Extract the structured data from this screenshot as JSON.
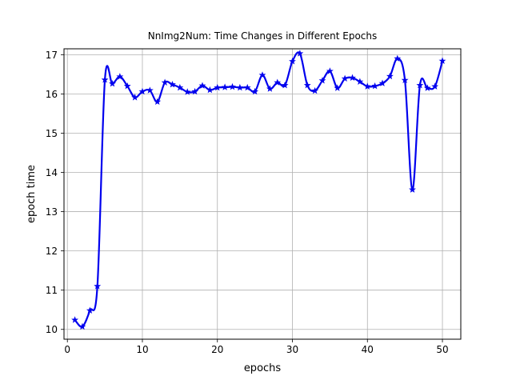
{
  "chart_data": {
    "type": "line",
    "title": "NnImg2Num: Time Changes in Different Epochs",
    "xlabel": "epochs",
    "ylabel": "epoch time",
    "xlim": [
      -0.45,
      52.45
    ],
    "ylim": [
      9.75,
      17.15
    ],
    "xticks": [
      0,
      10,
      20,
      30,
      40,
      50
    ],
    "yticks": [
      10,
      11,
      12,
      13,
      14,
      15,
      16,
      17
    ],
    "grid": true,
    "legend": "none",
    "series": [
      {
        "name": "",
        "color": "#0000ee",
        "marker": "star",
        "smooth": true,
        "x": [
          1,
          2,
          3,
          4,
          5,
          6,
          7,
          8,
          9,
          10,
          11,
          12,
          13,
          14,
          15,
          16,
          17,
          18,
          19,
          20,
          21,
          22,
          23,
          24,
          25,
          26,
          27,
          28,
          29,
          30,
          31,
          32,
          33,
          34,
          35,
          36,
          37,
          38,
          39,
          40,
          41,
          42,
          43,
          44,
          45,
          46,
          47,
          48,
          49,
          50
        ],
        "y": [
          10.24,
          10.07,
          10.48,
          11.1,
          16.36,
          16.26,
          16.44,
          16.2,
          15.91,
          16.06,
          16.09,
          15.8,
          16.29,
          16.24,
          16.16,
          16.05,
          16.06,
          16.21,
          16.1,
          16.16,
          16.17,
          16.18,
          16.16,
          16.16,
          16.06,
          16.48,
          16.13,
          16.29,
          16.22,
          16.83,
          17.03,
          16.22,
          16.08,
          16.34,
          16.58,
          16.15,
          16.39,
          16.41,
          16.31,
          16.19,
          16.2,
          16.27,
          16.45,
          16.9,
          16.35,
          13.56,
          16.22,
          16.15,
          16.19,
          16.84
        ]
      }
    ]
  }
}
